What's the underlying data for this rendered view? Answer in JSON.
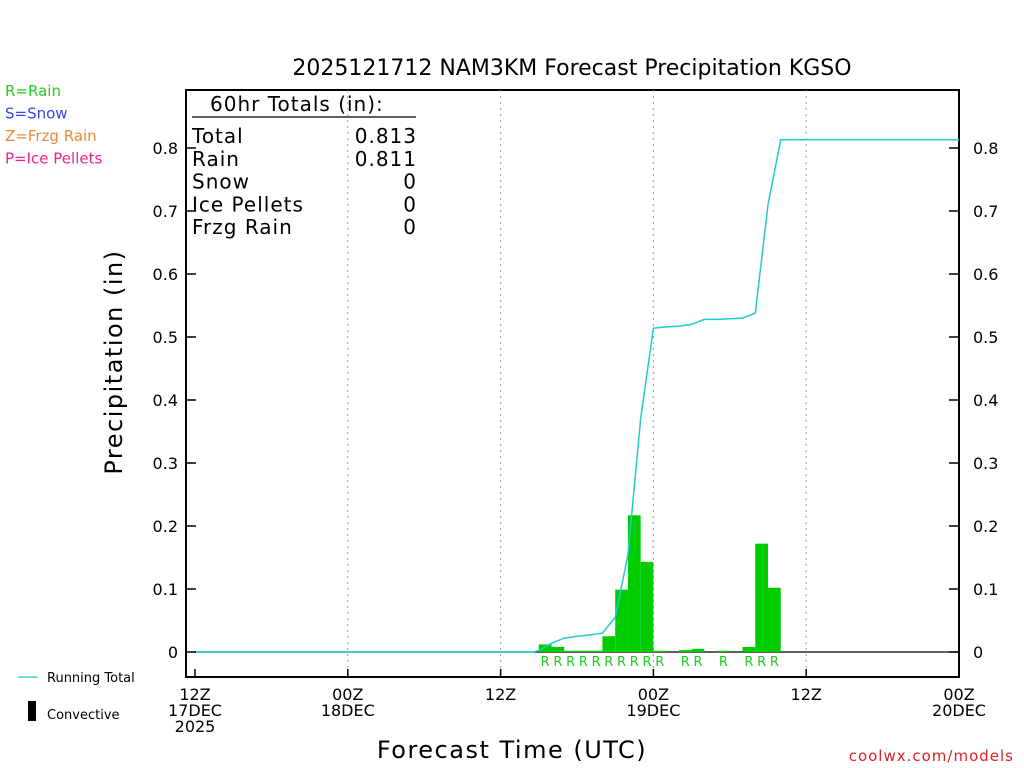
{
  "title": "2025121712 NAM3KM Forecast Precipitation KGSO",
  "legend_types": [
    {
      "label": "R=Rain",
      "color": "#22cc22"
    },
    {
      "label": "S=Snow",
      "color": "#3344ee"
    },
    {
      "label": "Z=Frzg Rain",
      "color": "#ee8833"
    },
    {
      "label": "P=Ice Pellets",
      "color": "#ee2288"
    }
  ],
  "totals": {
    "header": "60hr Totals (in):",
    "rows": [
      {
        "label": "Total",
        "value": "0.813"
      },
      {
        "label": "Rain",
        "value": "0.811"
      },
      {
        "label": "Snow",
        "value": "0"
      },
      {
        "label": "Ice Pellets",
        "value": "0"
      },
      {
        "label": "Frzg Rain",
        "value": "0"
      }
    ]
  },
  "bottom_legend": {
    "running_total": "Running Total",
    "convective": "Convective"
  },
  "credit": "coolwx.com/models",
  "colors": {
    "bar": "#00cc00",
    "running_total": "#22cccc",
    "rain_marker": "#22cc22",
    "credit": "#dd2222"
  },
  "chart_data": {
    "type": "bar",
    "title": "2025121712 NAM3KM Forecast Precipitation KGSO",
    "xlabel": "Forecast Time (UTC)",
    "ylabel": "Precipitation (in)",
    "ylim": [
      -0.04,
      0.9
    ],
    "y_ticks": [
      0,
      0.1,
      0.2,
      0.3,
      0.4,
      0.5,
      0.6,
      0.7,
      0.8
    ],
    "x_range_hours": [
      0,
      60
    ],
    "x_ticks": [
      {
        "hour": 0,
        "lines": [
          "12Z",
          "17DEC",
          "2025"
        ]
      },
      {
        "hour": 12,
        "lines": [
          "00Z",
          "18DEC"
        ]
      },
      {
        "hour": 24,
        "lines": [
          "12Z"
        ]
      },
      {
        "hour": 36,
        "lines": [
          "00Z",
          "19DEC"
        ]
      },
      {
        "hour": 48,
        "lines": [
          "12Z"
        ]
      },
      {
        "hour": 60,
        "lines": [
          "00Z",
          "20DEC"
        ]
      }
    ],
    "bars": [
      {
        "hour": 27.5,
        "value": 0.012
      },
      {
        "hour": 28.5,
        "value": 0.008
      },
      {
        "hour": 29.5,
        "value": 0.002
      },
      {
        "hour": 30.5,
        "value": 0.002
      },
      {
        "hour": 31.5,
        "value": 0.002
      },
      {
        "hour": 32.5,
        "value": 0.025
      },
      {
        "hour": 33.5,
        "value": 0.099
      },
      {
        "hour": 34.5,
        "value": 0.217
      },
      {
        "hour": 35.5,
        "value": 0.143
      },
      {
        "hour": 36.5,
        "value": 0.002
      },
      {
        "hour": 38.5,
        "value": 0.003
      },
      {
        "hour": 39.5,
        "value": 0.005
      },
      {
        "hour": 41.5,
        "value": 0.002
      },
      {
        "hour": 43.5,
        "value": 0.008
      },
      {
        "hour": 44.5,
        "value": 0.172
      },
      {
        "hour": 45.5,
        "value": 0.102
      }
    ],
    "type_markers": [
      {
        "hour": 27.5,
        "label": "R"
      },
      {
        "hour": 28.5,
        "label": "R"
      },
      {
        "hour": 29.5,
        "label": "R"
      },
      {
        "hour": 30.5,
        "label": "R"
      },
      {
        "hour": 31.5,
        "label": "R"
      },
      {
        "hour": 32.5,
        "label": "R"
      },
      {
        "hour": 33.5,
        "label": "R"
      },
      {
        "hour": 34.5,
        "label": "R"
      },
      {
        "hour": 35.5,
        "label": "R"
      },
      {
        "hour": 36.5,
        "label": "R"
      },
      {
        "hour": 38.5,
        "label": "R"
      },
      {
        "hour": 39.5,
        "label": "R"
      },
      {
        "hour": 41.5,
        "label": "R"
      },
      {
        "hour": 43.5,
        "label": "R"
      },
      {
        "hour": 44.5,
        "label": "R"
      },
      {
        "hour": 45.5,
        "label": "R"
      }
    ],
    "running_total": [
      {
        "hour": 0,
        "value": 0
      },
      {
        "hour": 26.5,
        "value": 0
      },
      {
        "hour": 27,
        "value": 0.002
      },
      {
        "hour": 28,
        "value": 0.014
      },
      {
        "hour": 29,
        "value": 0.022
      },
      {
        "hour": 30,
        "value": 0.025
      },
      {
        "hour": 31,
        "value": 0.027
      },
      {
        "hour": 32,
        "value": 0.03
      },
      {
        "hour": 33,
        "value": 0.055
      },
      {
        "hour": 34,
        "value": 0.154
      },
      {
        "hour": 35,
        "value": 0.371
      },
      {
        "hour": 36,
        "value": 0.514
      },
      {
        "hour": 37,
        "value": 0.516
      },
      {
        "hour": 38,
        "value": 0.517
      },
      {
        "hour": 39,
        "value": 0.52
      },
      {
        "hour": 40,
        "value": 0.528
      },
      {
        "hour": 41,
        "value": 0.528
      },
      {
        "hour": 42,
        "value": 0.529
      },
      {
        "hour": 43,
        "value": 0.53
      },
      {
        "hour": 44,
        "value": 0.538
      },
      {
        "hour": 45,
        "value": 0.71
      },
      {
        "hour": 46,
        "value": 0.813
      },
      {
        "hour": 60,
        "value": 0.813
      }
    ]
  }
}
